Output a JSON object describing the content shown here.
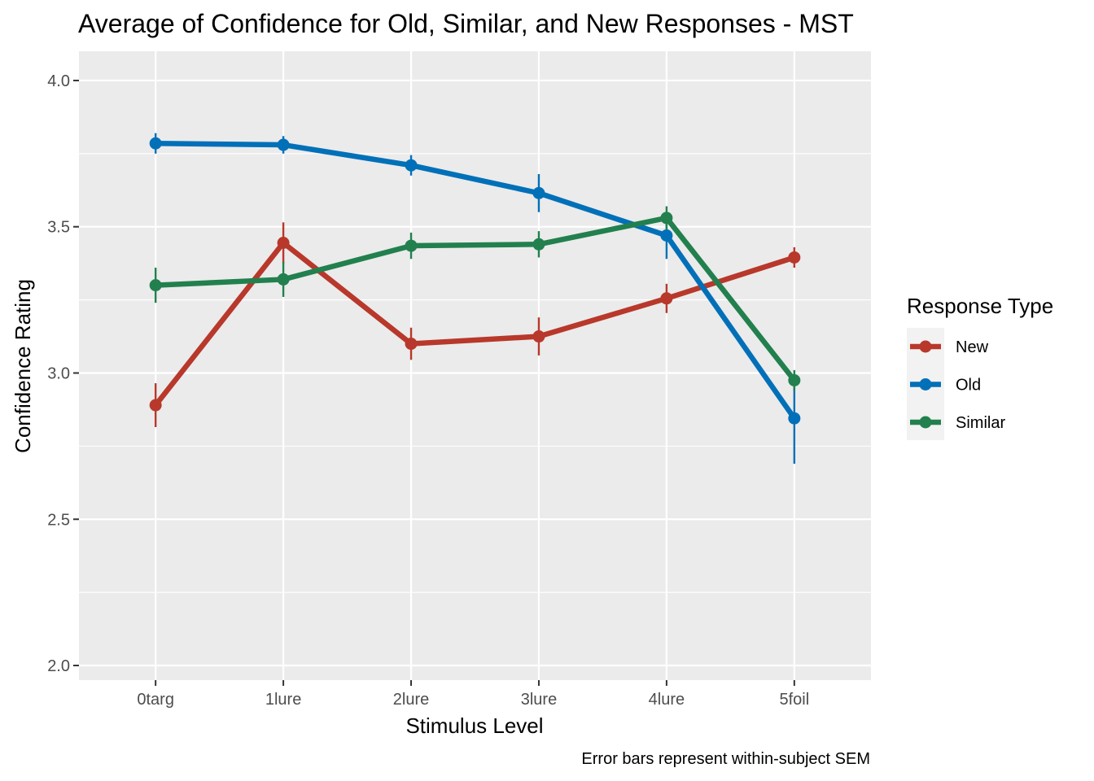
{
  "chart_data": {
    "type": "line",
    "title": "Average of Confidence for Old, Similar, and New Responses - MST",
    "xlabel": "Stimulus Level",
    "ylabel": "Confidence Rating",
    "caption": "Error bars represent within-subject SEM",
    "categories": [
      "0targ",
      "1lure",
      "2lure",
      "3lure",
      "4lure",
      "5foil"
    ],
    "ylim": [
      1.95,
      4.1
    ],
    "yticks": [
      2.0,
      2.5,
      3.0,
      3.5,
      4.0
    ],
    "ytick_labels": [
      "2.0",
      "2.5",
      "3.0",
      "3.5",
      "4.0"
    ],
    "grid": true,
    "legend": {
      "title": "Response Type",
      "position": "right"
    },
    "series": [
      {
        "name": "New",
        "color": "#B8382B",
        "values": [
          2.89,
          3.445,
          3.1,
          3.125,
          3.255,
          3.395
        ],
        "err": [
          0.075,
          0.07,
          0.055,
          0.065,
          0.05,
          0.035
        ]
      },
      {
        "name": "Old",
        "color": "#0270B8",
        "values": [
          3.785,
          3.78,
          3.71,
          3.615,
          3.47,
          2.845
        ],
        "err": [
          0.035,
          0.03,
          0.035,
          0.065,
          0.08,
          0.155
        ]
      },
      {
        "name": "Similar",
        "color": "#22804E",
        "values": [
          3.3,
          3.32,
          3.435,
          3.44,
          3.53,
          2.975
        ],
        "err": [
          0.06,
          0.06,
          0.045,
          0.045,
          0.04,
          0.035
        ]
      }
    ]
  }
}
